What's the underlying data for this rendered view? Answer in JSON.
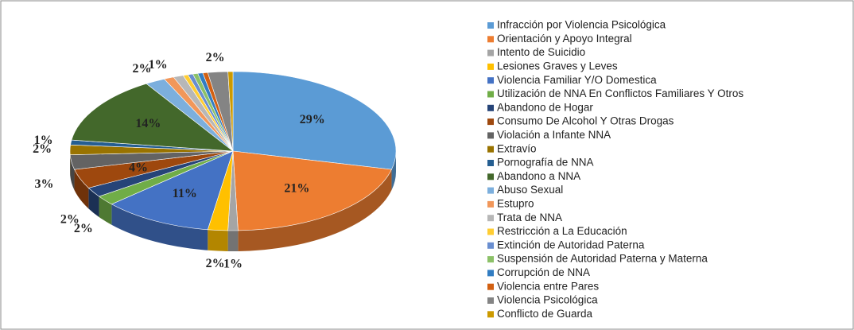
{
  "chart_data": {
    "type": "pie",
    "categories": [
      "Infracción por Violencia Psicológica",
      "Orientación y Apoyo Integral",
      "Intento de Suicidio",
      "Lesiones  Graves y Leves",
      "Violencia Familiar Y/O Domestica",
      "Utilización de NNA En Conflictos Familiares Y Otros",
      "Abandono de Hogar",
      "Consumo De Alcohol Y Otras Drogas",
      "Violación a Infante NNA",
      "Extravío",
      "Pornografía de NNA",
      "Abandono a NNA",
      "Abuso Sexual",
      "Estupro",
      "Trata de NNA",
      "Restricción a La Educación",
      "Extinción de Autoridad Paterna",
      "Suspensión de Autoridad Paterna y Materna",
      "Corrupción de NNA",
      "Violencia entre Pares",
      "Violencia Psicológica",
      "Conflicto de Guarda"
    ],
    "values": [
      29,
      21,
      1,
      2,
      11,
      2,
      2,
      4,
      3,
      2,
      1,
      14,
      2,
      1,
      1,
      0.5,
      0.5,
      0.5,
      0.5,
      0.5,
      2,
      0.5
    ],
    "value_labels": [
      "29%",
      "21%",
      "1%",
      "2%",
      "11%",
      "2%",
      "2%",
      "4%",
      "3%",
      "2%",
      "1%",
      "14%",
      "2%",
      "1%",
      null,
      null,
      null,
      null,
      null,
      null,
      "2%",
      null
    ],
    "colors": [
      "#5b9bd5",
      "#ed7d31",
      "#a5a5a5",
      "#ffc000",
      "#4472c4",
      "#70ad47",
      "#264478",
      "#9e480e",
      "#636363",
      "#997300",
      "#255e91",
      "#43682b",
      "#7cafdd",
      "#f1975a",
      "#b7b7b7",
      "#ffcd33",
      "#698ed0",
      "#8cc168",
      "#327dc2",
      "#d26012",
      "#848484",
      "#cc9a00"
    ],
    "legend": "right"
  }
}
